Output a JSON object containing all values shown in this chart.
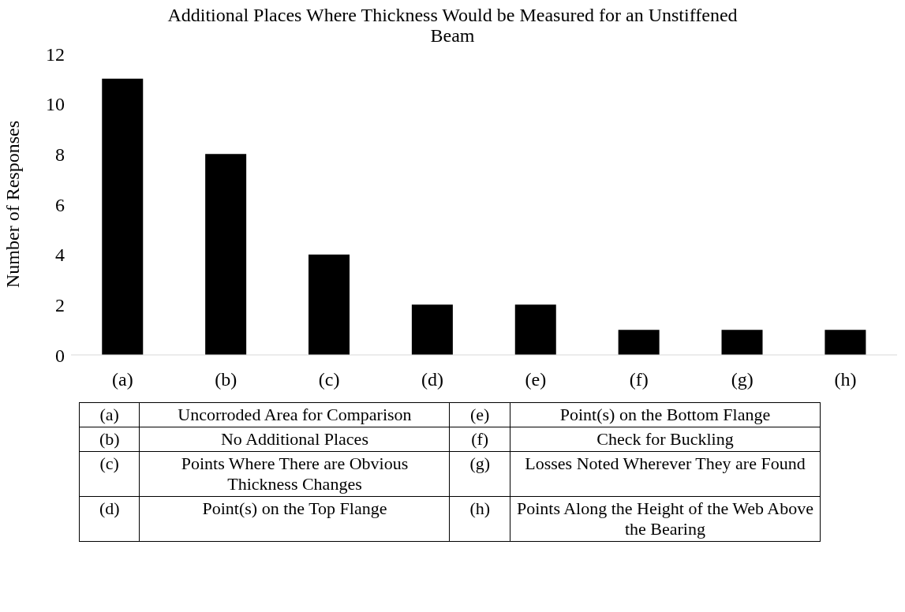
{
  "chart_data": {
    "type": "bar",
    "title": "Additional Places Where Thickness Would be Measured for an Unstiffened Beam",
    "ylabel": "Number of Responses",
    "categories": [
      "(a)",
      "(b)",
      "(c)",
      "(d)",
      "(e)",
      "(f)",
      "(g)",
      "(h)"
    ],
    "values": [
      11,
      8,
      4,
      2,
      2,
      1,
      1,
      1
    ],
    "color": "#000000",
    "ylim": [
      0,
      12
    ],
    "yticks": [
      0,
      2,
      4,
      6,
      8,
      10,
      12
    ],
    "annotations": [
      "(a)",
      "Uncorroded Area for Comparison",
      "(b)",
      "No Additional Places",
      "(c)",
      "Points Where There are Obvious Thickness Changes",
      "(d)",
      "Point(s) on the Top Flange",
      "(e)",
      "Point(s) on the Bottom Flange",
      "(f)",
      "Check for Buckling",
      "(g)",
      "Losses Noted Wherever They are Found",
      "(h)",
      "Points Along the Height of the Web Above the Bearing"
    ]
  }
}
